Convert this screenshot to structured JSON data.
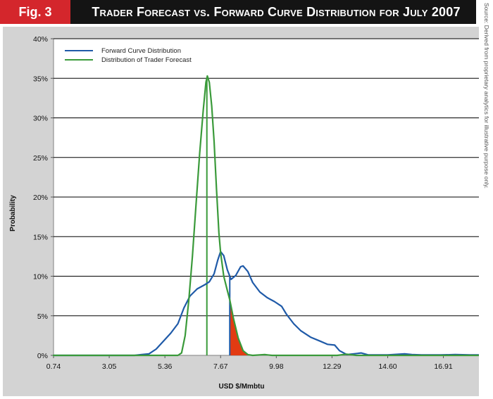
{
  "figure": {
    "tag": "Fig. 3",
    "title": "Trader Forecast vs. Forward Curve Distribution for July 2007",
    "source_note": "Source: Derived from proprietary analytics for illustrative purpose only."
  },
  "chart_data": {
    "type": "line",
    "xlabel": "USD $/Mmbtu",
    "ylabel": "Probability",
    "xlim": [
      0.74,
      18.5
    ],
    "ylim": [
      0,
      40
    ],
    "x_ticks": [
      "0.74",
      "3.05",
      "5.36",
      "7.67",
      "9.98",
      "12.29",
      "14.60",
      "16.91"
    ],
    "y_ticks": [
      "0%",
      "5%",
      "10%",
      "15%",
      "20%",
      "25%",
      "30%",
      "35%",
      "40%"
    ],
    "grid": "horizontal",
    "legend_position": "top-left",
    "series": [
      {
        "name": "Forward Curve Distribution",
        "color": "#1f5aa8",
        "points": [
          [
            0.74,
            0
          ],
          [
            4.1,
            0
          ],
          [
            4.4,
            0.1
          ],
          [
            4.7,
            0.2
          ],
          [
            5.0,
            0.8
          ],
          [
            5.3,
            1.8
          ],
          [
            5.6,
            2.8
          ],
          [
            5.9,
            4.0
          ],
          [
            6.15,
            6.0
          ],
          [
            6.4,
            7.5
          ],
          [
            6.7,
            8.4
          ],
          [
            7.0,
            8.9
          ],
          [
            7.2,
            9.3
          ],
          [
            7.4,
            10.3
          ],
          [
            7.55,
            12.0
          ],
          [
            7.67,
            13.1
          ],
          [
            7.8,
            12.6
          ],
          [
            7.95,
            10.8
          ],
          [
            8.1,
            9.6
          ],
          [
            8.3,
            10.1
          ],
          [
            8.5,
            11.2
          ],
          [
            8.6,
            11.3
          ],
          [
            8.8,
            10.6
          ],
          [
            9.0,
            9.2
          ],
          [
            9.3,
            8.0
          ],
          [
            9.6,
            7.3
          ],
          [
            9.9,
            6.8
          ],
          [
            10.2,
            6.2
          ],
          [
            10.4,
            5.2
          ],
          [
            10.7,
            4.0
          ],
          [
            11.0,
            3.1
          ],
          [
            11.4,
            2.3
          ],
          [
            11.8,
            1.8
          ],
          [
            12.1,
            1.4
          ],
          [
            12.4,
            1.3
          ],
          [
            12.6,
            0.6
          ],
          [
            12.9,
            0.1
          ],
          [
            13.2,
            0.2
          ],
          [
            13.5,
            0.3
          ],
          [
            13.8,
            0.05
          ],
          [
            14.6,
            0.05
          ],
          [
            15.3,
            0.2
          ],
          [
            15.6,
            0.1
          ],
          [
            16.0,
            0.05
          ],
          [
            16.8,
            0.05
          ],
          [
            17.4,
            0.1
          ],
          [
            18.0,
            0.05
          ],
          [
            18.5,
            0.05
          ]
        ]
      },
      {
        "name": "Distribution of Trader Forecast",
        "color": "#3a9a3a",
        "points": [
          [
            0.74,
            0
          ],
          [
            5.9,
            0
          ],
          [
            6.05,
            0.3
          ],
          [
            6.2,
            2.5
          ],
          [
            6.35,
            7.0
          ],
          [
            6.5,
            12.5
          ],
          [
            6.65,
            19.0
          ],
          [
            6.8,
            25.5
          ],
          [
            6.95,
            31.0
          ],
          [
            7.06,
            34.5
          ],
          [
            7.12,
            35.3
          ],
          [
            7.2,
            34.5
          ],
          [
            7.3,
            31.5
          ],
          [
            7.4,
            27.0
          ],
          [
            7.5,
            21.0
          ],
          [
            7.6,
            15.5
          ],
          [
            7.67,
            13.0
          ],
          [
            7.8,
            10.0
          ],
          [
            7.95,
            8.2
          ],
          [
            8.05,
            7.0
          ],
          [
            8.2,
            4.7
          ],
          [
            8.4,
            2.2
          ],
          [
            8.6,
            0.6
          ],
          [
            8.8,
            0.1
          ],
          [
            9.0,
            0
          ],
          [
            9.5,
            0.1
          ],
          [
            9.8,
            0
          ],
          [
            12.5,
            0
          ],
          [
            12.9,
            0.15
          ],
          [
            13.3,
            0
          ],
          [
            18.5,
            0
          ]
        ]
      }
    ],
    "markers": [
      {
        "x": 7.1,
        "description": "trader forecast peak line",
        "color": "#3a9a3a"
      },
      {
        "x": 8.05,
        "description": "forward curve marker line",
        "color": "#1f5aa8"
      }
    ],
    "shaded_region": {
      "x_from": 8.05,
      "x_to": 8.9,
      "under_series": "Distribution of Trader Forecast",
      "color": "#e23b12"
    }
  }
}
